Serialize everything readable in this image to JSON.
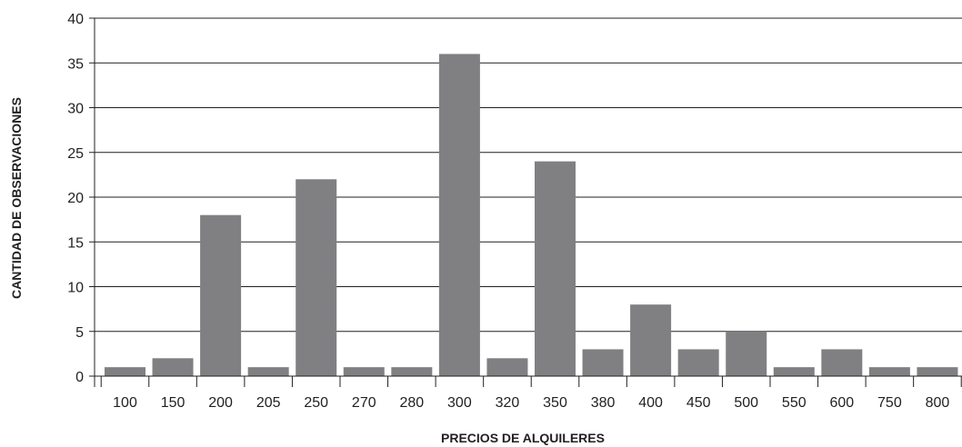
{
  "chart_data": {
    "type": "bar",
    "title": "",
    "xlabel": "PRECIOS DE ALQUILERES",
    "ylabel": "CANTIDAD DE OBSERVACIONES",
    "categories": [
      "100",
      "150",
      "200",
      "205",
      "250",
      "270",
      "280",
      "300",
      "320",
      "350",
      "380",
      "400",
      "450",
      "500",
      "550",
      "600",
      "750",
      "800"
    ],
    "values": [
      1,
      2,
      18,
      1,
      22,
      1,
      1,
      36,
      2,
      24,
      3,
      8,
      3,
      5,
      1,
      3,
      1,
      1
    ],
    "ylim": [
      0,
      40
    ],
    "yticks": [
      "0",
      "5",
      "10",
      "15",
      "20",
      "25",
      "30",
      "35",
      "40"
    ],
    "grid": true,
    "legend": "none",
    "bar_color": "#808083",
    "gridline_color": "#231f20"
  }
}
